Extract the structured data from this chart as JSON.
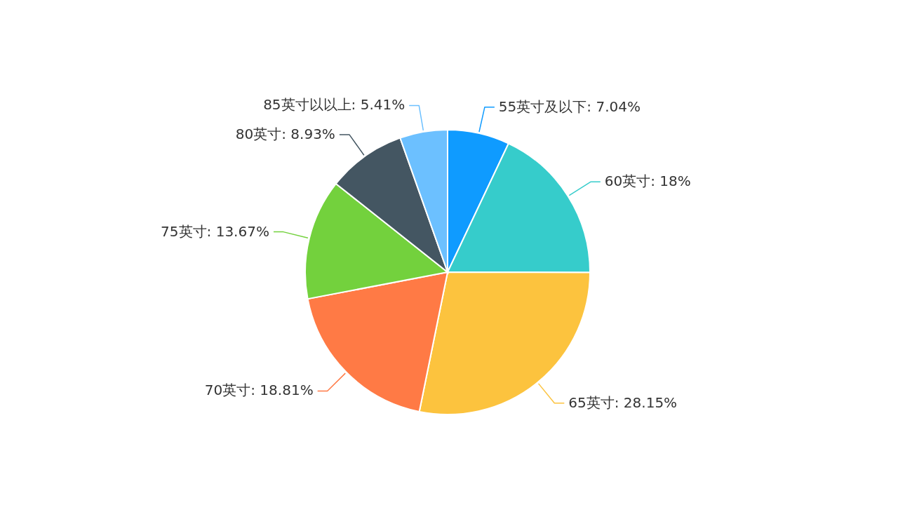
{
  "chart_data": {
    "type": "pie",
    "categories": [
      "55英寸及以下",
      "60英寸",
      "65英寸",
      "70英寸",
      "75英寸",
      "80英寸",
      "85英寸以以上"
    ],
    "values": [
      7.04,
      18,
      28.15,
      18.81,
      13.67,
      8.93,
      5.41
    ],
    "value_labels": [
      "7.04%",
      "18%",
      "28.15%",
      "18.81%",
      "13.67%",
      "8.93%",
      "5.41%"
    ],
    "colors": [
      "#0f9bff",
      "#36cccb",
      "#fcc33e",
      "#ff7a45",
      "#73d13d",
      "#445662",
      "#6cc0ff"
    ]
  }
}
